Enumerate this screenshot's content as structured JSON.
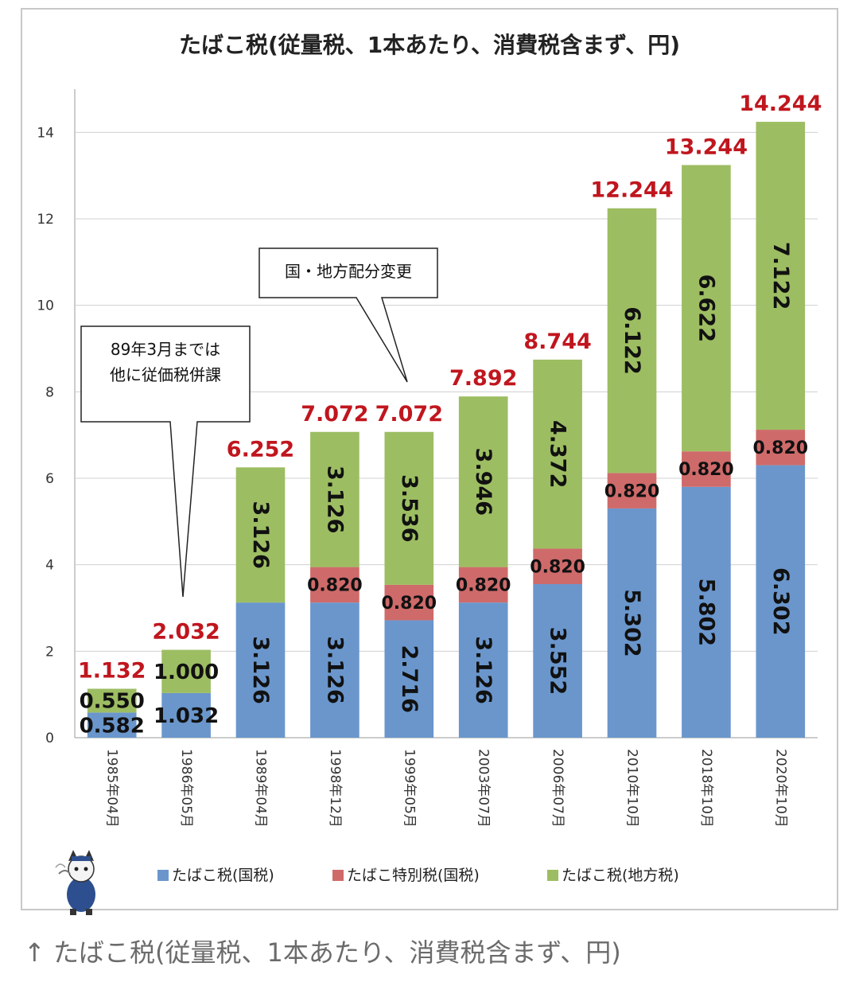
{
  "caption": "↑ たばこ税(従量税、1本あたり、消費税含まず、円)",
  "colors": {
    "national": "#6a96cc",
    "special": "#cf6a6a",
    "local": "#9dbd62",
    "total_label": "#c0161e",
    "grid": "#d0d0d0",
    "axis_text": "#333333"
  },
  "chart_data": {
    "type": "bar",
    "stacked": true,
    "title": "たばこ税(従量税、1本あたり、消費税含まず、円)",
    "categories": [
      "1985年04月",
      "1986年05月",
      "1989年04月",
      "1998年12月",
      "1999年05月",
      "2003年07月",
      "2006年07月",
      "2010年10月",
      "2018年10月",
      "2020年10月"
    ],
    "series": [
      {
        "name": "たばこ税(国税)",
        "color": "#6a96cc",
        "values": [
          0.582,
          1.032,
          3.126,
          3.126,
          2.716,
          3.126,
          3.552,
          5.302,
          5.802,
          6.302
        ]
      },
      {
        "name": "たばこ特別税(国税)",
        "color": "#cf6a6a",
        "values": [
          0,
          0,
          0,
          0.82,
          0.82,
          0.82,
          0.82,
          0.82,
          0.82,
          0.82
        ]
      },
      {
        "name": "たばこ税(地方税)",
        "color": "#9dbd62",
        "values": [
          0.55,
          1.0,
          3.126,
          3.126,
          3.536,
          3.946,
          4.372,
          6.122,
          6.622,
          7.122
        ]
      }
    ],
    "totals": [
      1.132,
      2.032,
      6.252,
      7.072,
      7.072,
      7.892,
      8.744,
      12.244,
      13.244,
      14.244
    ],
    "yticks": [
      0,
      2,
      4,
      6,
      8,
      10,
      12,
      14
    ],
    "ylim": [
      0,
      15
    ],
    "grid": true,
    "legend_position": "bottom",
    "annotations": [
      {
        "lines": [
          "89年3月までは",
          "他に従価税併課"
        ]
      },
      {
        "lines": [
          "国・地方配分変更"
        ]
      }
    ]
  }
}
